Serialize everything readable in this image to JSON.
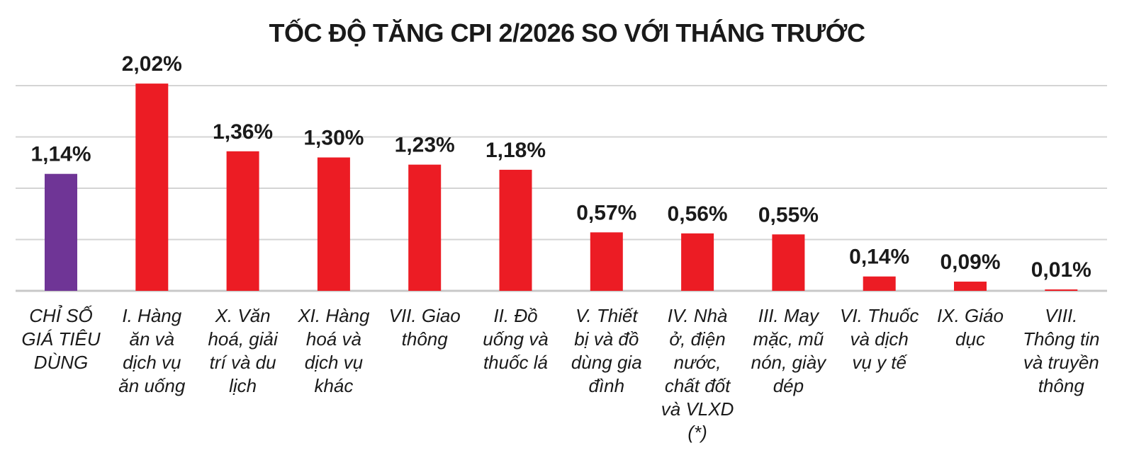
{
  "chart_data": {
    "type": "bar",
    "title": "TỐC ĐỘ TĂNG CPI 2/2026 SO VỚI THÁNG TRƯỚC",
    "xlabel": "",
    "ylabel": "",
    "ylim": [
      0,
      2.0
    ],
    "grid": true,
    "categories": [
      "CHỈ SỐ GIÁ TIÊU DÙNG",
      "I. Hàng ăn và dịch vụ ăn uống",
      "X. Văn hoá, giải trí và du lịch",
      "XI. Hàng hoá và dịch vụ khác",
      "VII. Giao thông",
      "II. Đồ uống và thuốc lá",
      "V. Thiết bị và đồ dùng gia đình",
      "IV. Nhà ở, điện nước, chất đốt và VLXD (*)",
      "III. May mặc, mũ nón, giày dép",
      "VI. Thuốc và dịch vụ y tế",
      "IX. Giáo dục",
      "VIII. Thông tin và truyền thông"
    ],
    "category_lines": [
      [
        "CHỈ SỐ",
        "GIÁ TIÊU",
        "DÙNG"
      ],
      [
        "I. Hàng",
        "ăn và",
        "dịch vụ",
        "ăn uống"
      ],
      [
        "X. Văn",
        "hoá, giải",
        "trí và du",
        "lịch"
      ],
      [
        "XI. Hàng",
        "hoá và",
        "dịch vụ",
        "khác"
      ],
      [
        "VII. Giao",
        "thông"
      ],
      [
        "II. Đồ",
        "uống và",
        "thuốc lá"
      ],
      [
        "V. Thiết",
        "bị và đồ",
        "dùng gia",
        "đình"
      ],
      [
        "IV. Nhà",
        "ở, điện",
        "nước,",
        "chất đốt",
        "và VLXD",
        "(*)"
      ],
      [
        "III. May",
        "mặc, mũ",
        "nón, giày",
        "dép"
      ],
      [
        "VI. Thuốc",
        "và dịch",
        "vụ y tế"
      ],
      [
        "IX. Giáo",
        "dục"
      ],
      [
        "VIII.",
        "Thông tin",
        "và truyền",
        "thông"
      ]
    ],
    "values": [
      1.14,
      2.02,
      1.36,
      1.3,
      1.23,
      1.18,
      0.57,
      0.56,
      0.55,
      0.14,
      0.09,
      0.01
    ],
    "value_labels": [
      "1,14%",
      "2,02%",
      "1,36%",
      "1,30%",
      "1,23%",
      "1,18%",
      "0,57%",
      "0,56%",
      "0,55%",
      "0,14%",
      "0,09%",
      "0,01%"
    ],
    "colors": [
      "#6f3596",
      "#ec1c24",
      "#ec1c24",
      "#ec1c24",
      "#ec1c24",
      "#ec1c24",
      "#ec1c24",
      "#ec1c24",
      "#ec1c24",
      "#ec1c24",
      "#ec1c24",
      "#ec1c24"
    ],
    "gridline_values": [
      0.5,
      1.0,
      1.5,
      2.0
    ]
  }
}
